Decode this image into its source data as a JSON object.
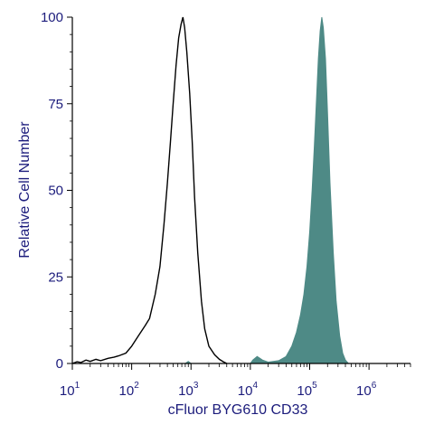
{
  "chart_data": {
    "type": "area",
    "title": "",
    "xlabel": "cFluor BYG610 CD33",
    "ylabel": "Relative Cell Number",
    "x_scale": "log",
    "xlim": [
      10,
      5000000
    ],
    "ylim": [
      0,
      100
    ],
    "x_tick_labels": [
      {
        "base": "10",
        "exp": "1",
        "value": 10
      },
      {
        "base": "10",
        "exp": "2",
        "value": 100
      },
      {
        "base": "10",
        "exp": "3",
        "value": 1000
      },
      {
        "base": "10",
        "exp": "4",
        "value": 10000
      },
      {
        "base": "10",
        "exp": "5",
        "value": 100000
      },
      {
        "base": "10",
        "exp": "6",
        "value": 1000000
      }
    ],
    "y_ticks": [
      {
        "label": "0",
        "value": 0
      },
      {
        "label": "25",
        "value": 25
      },
      {
        "label": "50",
        "value": 50
      },
      {
        "label": "75",
        "value": 75
      },
      {
        "label": "100",
        "value": 100
      }
    ],
    "grid": false,
    "series": [
      {
        "style": "outline",
        "color": "#000000",
        "points": [
          [
            10,
            0
          ],
          [
            12,
            0.5
          ],
          [
            14,
            0.3
          ],
          [
            17,
            1
          ],
          [
            20,
            0.6
          ],
          [
            25,
            1.2
          ],
          [
            30,
            0.8
          ],
          [
            40,
            1.5
          ],
          [
            50,
            1.8
          ],
          [
            60,
            2.2
          ],
          [
            80,
            3
          ],
          [
            100,
            5
          ],
          [
            130,
            8
          ],
          [
            170,
            11
          ],
          [
            200,
            13
          ],
          [
            250,
            20
          ],
          [
            300,
            28
          ],
          [
            350,
            40
          ],
          [
            400,
            52
          ],
          [
            450,
            64
          ],
          [
            500,
            75
          ],
          [
            560,
            86
          ],
          [
            620,
            94
          ],
          [
            680,
            98
          ],
          [
            730,
            100
          ],
          [
            780,
            97
          ],
          [
            850,
            90
          ],
          [
            950,
            78
          ],
          [
            1050,
            64
          ],
          [
            1150,
            48
          ],
          [
            1300,
            32
          ],
          [
            1500,
            18
          ],
          [
            1700,
            10
          ],
          [
            2000,
            5
          ],
          [
            2500,
            2.5
          ],
          [
            3000,
            1.2
          ],
          [
            3500,
            0.5
          ],
          [
            4000,
            0
          ]
        ]
      },
      {
        "style": "filled",
        "color": "#4e8a86",
        "points": [
          [
            800,
            0
          ],
          [
            900,
            0.6
          ],
          [
            1000,
            0
          ],
          [
            10000,
            0
          ],
          [
            11000,
            1
          ],
          [
            13000,
            2
          ],
          [
            16000,
            1
          ],
          [
            20000,
            0.4
          ],
          [
            30000,
            0.8
          ],
          [
            40000,
            2
          ],
          [
            50000,
            5
          ],
          [
            60000,
            9
          ],
          [
            70000,
            14
          ],
          [
            80000,
            20
          ],
          [
            90000,
            28
          ],
          [
            100000,
            38
          ],
          [
            110000,
            50
          ],
          [
            120000,
            63
          ],
          [
            130000,
            76
          ],
          [
            140000,
            88
          ],
          [
            150000,
            96
          ],
          [
            160000,
            100
          ],
          [
            170000,
            97
          ],
          [
            185000,
            88
          ],
          [
            200000,
            72
          ],
          [
            220000,
            52
          ],
          [
            250000,
            32
          ],
          [
            280000,
            18
          ],
          [
            320000,
            8
          ],
          [
            360000,
            3
          ],
          [
            400000,
            1
          ],
          [
            450000,
            0
          ]
        ]
      }
    ]
  }
}
